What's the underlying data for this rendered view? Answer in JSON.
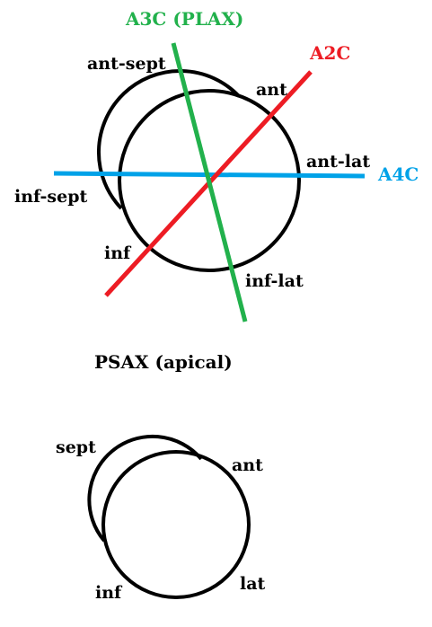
{
  "top_view": {
    "segments": {
      "ant_sept": "ant-sept",
      "ant": "ant",
      "ant_lat": "ant-lat",
      "inf_sept": "inf-sept",
      "inf": "inf",
      "inf_lat": "inf-lat"
    },
    "views": {
      "a3c": {
        "label": "A3C (PLAX)",
        "color": "#22b14c"
      },
      "a2c": {
        "label": "A2C",
        "color": "#ed1c24"
      },
      "a4c": {
        "label": "A4C",
        "color": "#00a2e8"
      }
    }
  },
  "title": "PSAX (apical)",
  "bottom_view": {
    "segments": {
      "sept": "sept",
      "ant": "ant",
      "inf": "inf",
      "lat": "lat"
    }
  }
}
